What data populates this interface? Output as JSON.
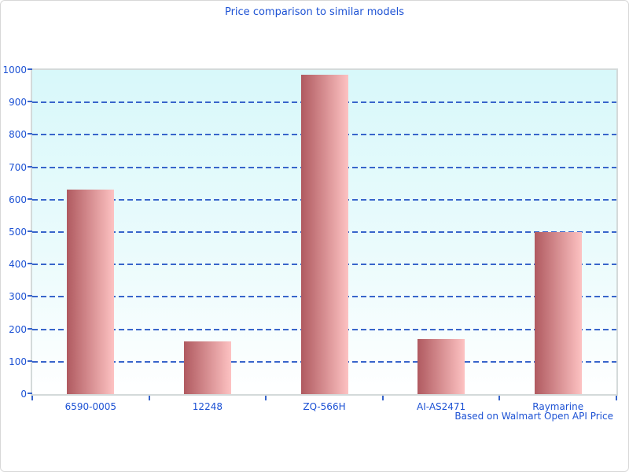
{
  "chart_data": {
    "type": "bar",
    "title": "Price comparison to similar models",
    "categories": [
      "6590-0005",
      "12248",
      "ZQ-566H",
      "AI-AS2471",
      "Raymarine"
    ],
    "values": [
      630,
      162,
      985,
      170,
      500
    ],
    "ylim": [
      0,
      1000
    ],
    "yticks": [
      0,
      100,
      200,
      300,
      400,
      500,
      600,
      700,
      800,
      900,
      1000
    ],
    "grid": "horizontal-dashed",
    "legend_position": "none",
    "footnote": "Based on Walmart Open API Price",
    "colors": {
      "title_text": "#1d52d4",
      "axis_text": "#1d52d4",
      "gridline": "#3865cb",
      "tick": "#3865cb",
      "bar_gradient_start": "#b05a60",
      "bar_gradient_end": "#fdc2c2",
      "plot_bg_top": "#d8f8fa",
      "plot_bg_mid": "#eafbfc",
      "plot_bg_bottom": "#ffffff",
      "plot_border": "#d4dada",
      "window_border": "#d8d8d8"
    }
  }
}
